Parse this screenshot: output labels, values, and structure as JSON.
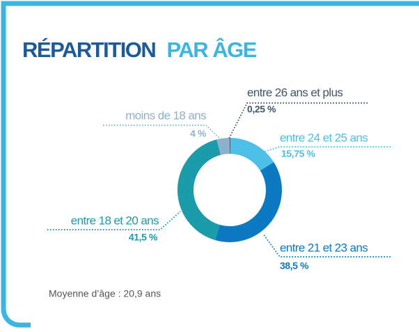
{
  "chart_data": {
    "type": "donut",
    "title": [
      "RÉPARTITION",
      "PAR ÂGE"
    ],
    "categories": [
      "entre 26 ans et plus",
      "entre 24 et 25 ans",
      "entre 21 et 23 ans",
      "entre 18 et 20 ans",
      "moins de 18 ans"
    ],
    "values": [
      0.25,
      15.75,
      38.5,
      41.5,
      4
    ],
    "value_labels": [
      "0,25 %",
      "15,75 %",
      "38,5 %",
      "41,5 %",
      "4 %"
    ],
    "colors": [
      "#3f5670",
      "#4cc0e6",
      "#0b7ac3",
      "#1a9cab",
      "#8eb1cb"
    ],
    "footnote": "Moyenne d’âge : 20,9 ans"
  }
}
